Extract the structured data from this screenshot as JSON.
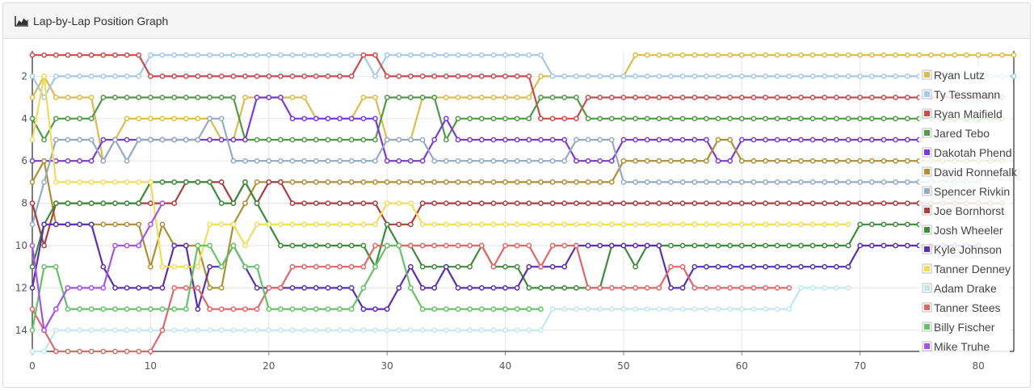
{
  "panel": {
    "title": "Lap-by-Lap Position Graph",
    "icon": "area-chart-icon"
  },
  "chart_data": {
    "type": "line",
    "title": "Lap-by-Lap Position Graph",
    "xlabel": "",
    "ylabel": "",
    "xlim": [
      0,
      83
    ],
    "ylim": [
      15,
      0.8
    ],
    "y_reversed": true,
    "x_ticks": [
      0,
      10,
      20,
      30,
      40,
      50,
      60,
      70,
      80
    ],
    "y_ticks": [
      2,
      4,
      6,
      8,
      10,
      12,
      14
    ],
    "grid": true,
    "legend_position": "right",
    "series": [
      {
        "name": "Ryan Lutz",
        "color": "#dcbc4a",
        "points": [
          [
            0,
            3
          ],
          [
            1,
            2
          ],
          [
            2,
            3
          ],
          [
            5,
            3
          ],
          [
            6,
            6
          ],
          [
            7,
            5
          ],
          [
            8,
            4
          ],
          [
            15,
            4
          ],
          [
            16,
            5
          ],
          [
            17,
            5
          ],
          [
            18,
            3
          ],
          [
            23,
            3
          ],
          [
            24,
            4
          ],
          [
            27,
            4
          ],
          [
            28,
            3
          ],
          [
            29,
            3
          ],
          [
            30,
            5
          ],
          [
            32,
            5
          ],
          [
            33,
            3
          ],
          [
            42,
            3
          ],
          [
            43,
            2
          ],
          [
            50,
            2
          ],
          [
            51,
            1
          ],
          [
            83,
            1
          ]
        ]
      },
      {
        "name": "Ty Tessmann",
        "color": "#a3c9ea",
        "points": [
          [
            0,
            2
          ],
          [
            1,
            3
          ],
          [
            2,
            2
          ],
          [
            9,
            2
          ],
          [
            10,
            1
          ],
          [
            28,
            1
          ],
          [
            29,
            2
          ],
          [
            30,
            1
          ],
          [
            43,
            1
          ],
          [
            44,
            2
          ],
          [
            50,
            2
          ],
          [
            51,
            2
          ],
          [
            83,
            2
          ]
        ]
      },
      {
        "name": "Ryan Maifield",
        "color": "#c94c4c",
        "points": [
          [
            0,
            1
          ],
          [
            9,
            1
          ],
          [
            10,
            2
          ],
          [
            27,
            2
          ],
          [
            28,
            1
          ],
          [
            29,
            1
          ],
          [
            30,
            2
          ],
          [
            42,
            2
          ],
          [
            43,
            4
          ],
          [
            46,
            4
          ],
          [
            47,
            3
          ],
          [
            82,
            3
          ]
        ]
      },
      {
        "name": "Jared Tebo",
        "color": "#4f9a45",
        "points": [
          [
            0,
            4
          ],
          [
            1,
            5
          ],
          [
            2,
            4
          ],
          [
            5,
            4
          ],
          [
            6,
            3
          ],
          [
            17,
            3
          ],
          [
            18,
            5
          ],
          [
            29,
            5
          ],
          [
            30,
            3
          ],
          [
            34,
            3
          ],
          [
            35,
            5
          ],
          [
            36,
            4
          ],
          [
            42,
            4
          ],
          [
            43,
            3
          ],
          [
            46,
            3
          ],
          [
            47,
            4
          ],
          [
            82,
            4
          ]
        ]
      },
      {
        "name": "Dakotah Phend",
        "color": "#7b39d6",
        "points": [
          [
            0,
            6
          ],
          [
            1,
            6
          ],
          [
            2,
            6
          ],
          [
            5,
            6
          ],
          [
            6,
            5
          ],
          [
            18,
            5
          ],
          [
            19,
            3
          ],
          [
            21,
            3
          ],
          [
            22,
            4
          ],
          [
            29,
            4
          ],
          [
            30,
            6
          ],
          [
            33,
            6
          ],
          [
            34,
            5
          ],
          [
            35,
            4
          ],
          [
            36,
            5
          ],
          [
            45,
            5
          ],
          [
            46,
            6
          ],
          [
            49,
            6
          ],
          [
            50,
            5
          ],
          [
            57,
            5
          ],
          [
            58,
            6
          ],
          [
            59,
            6
          ],
          [
            60,
            5
          ],
          [
            75,
            5
          ]
        ]
      },
      {
        "name": "David Ronnefalk",
        "color": "#b08f32",
        "points": [
          [
            0,
            7
          ],
          [
            1,
            6
          ],
          [
            2,
            9
          ],
          [
            3,
            9
          ],
          [
            4,
            9
          ],
          [
            5,
            9
          ],
          [
            6,
            9
          ],
          [
            7,
            9
          ],
          [
            8,
            9
          ],
          [
            9,
            9
          ],
          [
            10,
            11
          ],
          [
            11,
            9
          ],
          [
            12,
            10
          ],
          [
            14,
            10
          ],
          [
            15,
            12
          ],
          [
            16,
            12
          ],
          [
            17,
            9
          ],
          [
            18,
            8
          ],
          [
            19,
            7
          ],
          [
            22,
            7
          ],
          [
            49,
            7
          ],
          [
            50,
            6
          ],
          [
            57,
            6
          ],
          [
            58,
            5
          ],
          [
            59,
            5
          ],
          [
            60,
            6
          ],
          [
            82,
            6
          ]
        ]
      },
      {
        "name": "Spencer Rivkin",
        "color": "#93abc2",
        "points": [
          [
            0,
            9
          ],
          [
            1,
            7
          ],
          [
            2,
            5
          ],
          [
            4,
            5
          ],
          [
            5,
            5
          ],
          [
            6,
            6
          ],
          [
            7,
            5
          ],
          [
            8,
            6
          ],
          [
            9,
            5
          ],
          [
            14,
            5
          ],
          [
            15,
            4
          ],
          [
            16,
            4
          ],
          [
            17,
            6
          ],
          [
            29,
            6
          ],
          [
            30,
            5
          ],
          [
            33,
            5
          ],
          [
            34,
            6
          ],
          [
            45,
            6
          ],
          [
            46,
            5
          ],
          [
            49,
            5
          ],
          [
            50,
            7
          ],
          [
            80,
            7
          ]
        ]
      },
      {
        "name": "Joe Bornhorst",
        "color": "#a83e3e",
        "points": [
          [
            0,
            8
          ],
          [
            1,
            10
          ],
          [
            2,
            8
          ],
          [
            12,
            8
          ],
          [
            13,
            7
          ],
          [
            16,
            7
          ],
          [
            17,
            8
          ],
          [
            18,
            7
          ],
          [
            19,
            8
          ],
          [
            20,
            7
          ],
          [
            21,
            7
          ],
          [
            22,
            8
          ],
          [
            29,
            8
          ],
          [
            30,
            9
          ],
          [
            32,
            9
          ],
          [
            33,
            8
          ],
          [
            82,
            8
          ]
        ]
      },
      {
        "name": "Josh Wheeler",
        "color": "#3d8a3a",
        "points": [
          [
            0,
            11
          ],
          [
            1,
            9
          ],
          [
            2,
            8
          ],
          [
            9,
            8
          ],
          [
            10,
            7
          ],
          [
            15,
            7
          ],
          [
            16,
            8
          ],
          [
            17,
            8
          ],
          [
            18,
            7
          ],
          [
            19,
            8
          ],
          [
            20,
            9
          ],
          [
            21,
            10
          ],
          [
            28,
            10
          ],
          [
            29,
            11
          ],
          [
            30,
            9
          ],
          [
            31,
            10
          ],
          [
            32,
            10
          ],
          [
            33,
            11
          ],
          [
            37,
            11
          ],
          [
            38,
            10
          ],
          [
            39,
            11
          ],
          [
            40,
            11
          ],
          [
            41,
            11
          ],
          [
            42,
            12
          ],
          [
            48,
            12
          ],
          [
            49,
            10
          ],
          [
            50,
            10
          ],
          [
            51,
            11
          ],
          [
            52,
            10
          ],
          [
            69,
            10
          ],
          [
            70,
            9
          ],
          [
            75,
            9
          ]
        ]
      },
      {
        "name": "Kyle Johnson",
        "color": "#5b2fad",
        "points": [
          [
            0,
            12
          ],
          [
            1,
            9
          ],
          [
            2,
            9
          ],
          [
            4,
            9
          ],
          [
            5,
            9
          ],
          [
            6,
            11
          ],
          [
            7,
            12
          ],
          [
            11,
            12
          ],
          [
            12,
            10
          ],
          [
            13,
            10
          ],
          [
            14,
            13
          ],
          [
            15,
            11
          ],
          [
            16,
            11
          ],
          [
            17,
            10
          ],
          [
            18,
            11
          ],
          [
            19,
            12
          ],
          [
            27,
            12
          ],
          [
            28,
            13
          ],
          [
            30,
            13
          ],
          [
            31,
            12
          ],
          [
            32,
            11
          ],
          [
            33,
            12
          ],
          [
            34,
            12
          ],
          [
            35,
            11
          ],
          [
            36,
            12
          ],
          [
            41,
            12
          ],
          [
            42,
            11
          ],
          [
            45,
            11
          ],
          [
            46,
            10
          ],
          [
            53,
            10
          ],
          [
            54,
            12
          ],
          [
            55,
            12
          ],
          [
            56,
            11
          ],
          [
            69,
            11
          ],
          [
            70,
            10
          ],
          [
            80,
            10
          ]
        ]
      },
      {
        "name": "Tanner Denney",
        "color": "#f2dc5d",
        "points": [
          [
            0,
            5
          ],
          [
            1,
            2
          ],
          [
            2,
            7
          ],
          [
            10,
            7
          ],
          [
            11,
            11
          ],
          [
            14,
            11
          ],
          [
            15,
            9
          ],
          [
            17,
            9
          ],
          [
            18,
            10
          ],
          [
            19,
            9
          ],
          [
            20,
            9
          ],
          [
            22,
            9
          ],
          [
            29,
            9
          ],
          [
            30,
            8
          ],
          [
            32,
            8
          ],
          [
            33,
            9
          ],
          [
            69,
            9
          ]
        ]
      },
      {
        "name": "Adam Drake",
        "color": "#bfe8ee",
        "points": [
          [
            0,
            15
          ],
          [
            2,
            14
          ],
          [
            11,
            14
          ],
          [
            12,
            14
          ],
          [
            13,
            14
          ],
          [
            43,
            14
          ],
          [
            44,
            13
          ],
          [
            64,
            13
          ],
          [
            65,
            12
          ],
          [
            69,
            12
          ]
        ]
      },
      {
        "name": "Tanner Stees",
        "color": "#e06767",
        "points": [
          [
            0,
            13
          ],
          [
            1,
            14
          ],
          [
            2,
            15
          ],
          [
            10,
            15
          ],
          [
            11,
            14
          ],
          [
            12,
            12
          ],
          [
            13,
            12
          ],
          [
            14,
            12
          ],
          [
            15,
            13
          ],
          [
            19,
            13
          ],
          [
            20,
            12
          ],
          [
            21,
            12
          ],
          [
            22,
            11
          ],
          [
            27,
            11
          ],
          [
            28,
            11
          ],
          [
            29,
            10
          ],
          [
            31,
            10
          ],
          [
            32,
            10
          ],
          [
            33,
            10
          ],
          [
            38,
            10
          ],
          [
            39,
            11
          ],
          [
            40,
            10
          ],
          [
            42,
            10
          ],
          [
            43,
            11
          ],
          [
            44,
            10
          ],
          [
            46,
            10
          ],
          [
            47,
            12
          ],
          [
            53,
            12
          ],
          [
            54,
            11
          ],
          [
            55,
            11
          ],
          [
            56,
            12
          ],
          [
            64,
            12
          ]
        ]
      },
      {
        "name": "Billy Fischer",
        "color": "#66c266",
        "points": [
          [
            0,
            14
          ],
          [
            1,
            11
          ],
          [
            2,
            11
          ],
          [
            3,
            13
          ],
          [
            13,
            13
          ],
          [
            14,
            10
          ],
          [
            15,
            10
          ],
          [
            16,
            11
          ],
          [
            17,
            10
          ],
          [
            18,
            11
          ],
          [
            19,
            11
          ],
          [
            20,
            13
          ],
          [
            27,
            13
          ],
          [
            28,
            12
          ],
          [
            29,
            11
          ],
          [
            30,
            10
          ],
          [
            31,
            10
          ],
          [
            32,
            12
          ],
          [
            33,
            13
          ],
          [
            43,
            13
          ]
        ]
      },
      {
        "name": "Mike Truhe",
        "color": "#a652e6",
        "points": [
          [
            0,
            10
          ],
          [
            1,
            14
          ],
          [
            2,
            13
          ],
          [
            3,
            12
          ],
          [
            6,
            12
          ],
          [
            7,
            10
          ],
          [
            9,
            10
          ],
          [
            10,
            9
          ],
          [
            11,
            8
          ]
        ]
      }
    ]
  }
}
